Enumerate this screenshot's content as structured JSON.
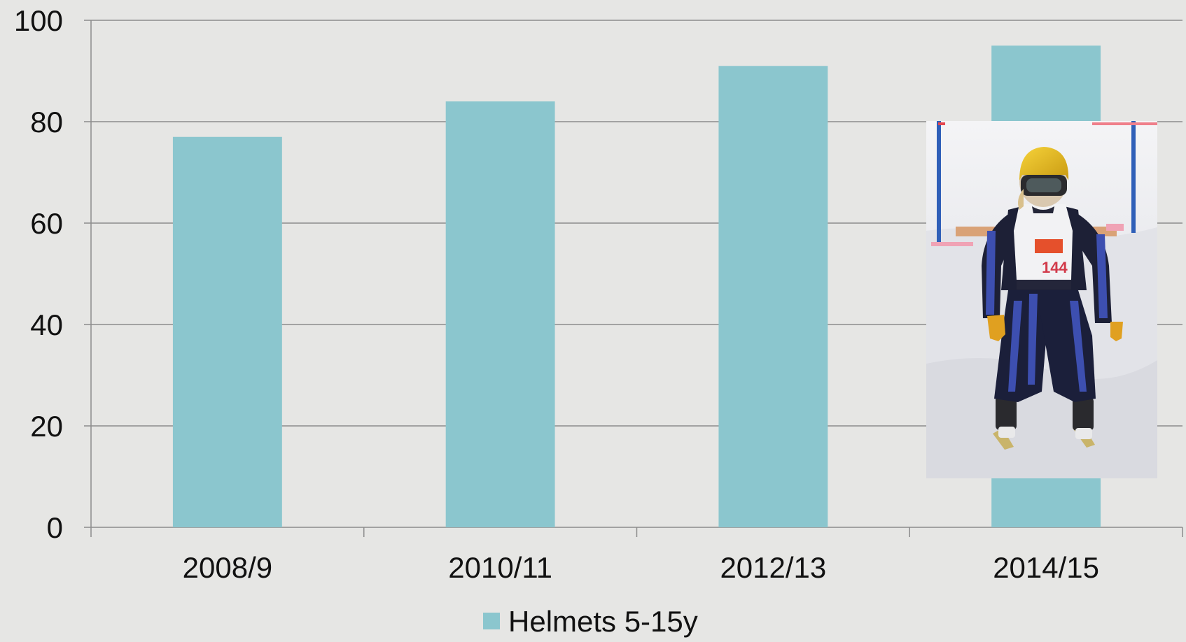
{
  "chart_data": {
    "type": "bar",
    "categories": [
      "2008/9",
      "2010/11",
      "2012/13",
      "2014/15"
    ],
    "series": [
      {
        "name": "Helmets 5-15y",
        "values": [
          77,
          84,
          91,
          95
        ],
        "color": "#8bc6ce"
      }
    ],
    "ylim": [
      0,
      100
    ],
    "yticks": [
      0,
      20,
      40,
      60,
      80,
      100
    ],
    "grid": true,
    "legend_position": "bottom-center",
    "inset_photo": "child-skier-wearing-helmet-photo"
  },
  "colors": {
    "background": "#e6e6e4",
    "gridline": "#8c8c8c",
    "bar": "#8bc6ce",
    "text": "#111111"
  }
}
